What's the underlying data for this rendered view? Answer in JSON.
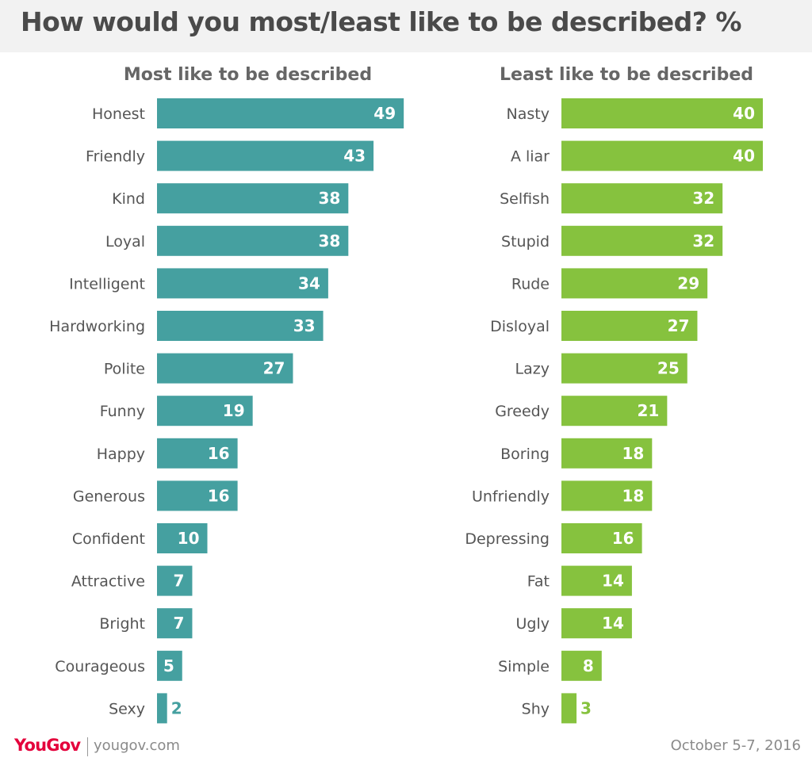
{
  "title": "How would you most/least like to be described? %",
  "colors": {
    "most": "#45a0a0",
    "least": "#86c23e",
    "label": "#555555",
    "header_bg": "#f2f2f2",
    "brand": "#e4003b"
  },
  "chart_data": [
    {
      "type": "bar",
      "orientation": "horizontal",
      "title": "Most like to be described",
      "categories": [
        "Honest",
        "Friendly",
        "Kind",
        "Loyal",
        "Intelligent",
        "Hardworking",
        "Polite",
        "Funny",
        "Happy",
        "Generous",
        "Confident",
        "Attractive",
        "Bright",
        "Courageous",
        "Sexy"
      ],
      "values": [
        49,
        43,
        38,
        38,
        34,
        33,
        27,
        19,
        16,
        16,
        10,
        7,
        7,
        5,
        2
      ],
      "xlim": [
        0,
        50
      ],
      "grid": false
    },
    {
      "type": "bar",
      "orientation": "horizontal",
      "title": "Least like to be described",
      "categories": [
        "Nasty",
        "A liar",
        "Selfish",
        "Stupid",
        "Rude",
        "Disloyal",
        "Lazy",
        "Greedy",
        "Boring",
        "Unfriendly",
        "Depressing",
        "Fat",
        "Ugly",
        "Simple",
        "Shy"
      ],
      "values": [
        40,
        40,
        32,
        32,
        29,
        27,
        25,
        21,
        18,
        18,
        16,
        14,
        14,
        8,
        3
      ],
      "xlim": [
        0,
        50
      ],
      "grid": false
    }
  ],
  "footer": {
    "logo": "YouGov",
    "url": "yougov.com",
    "date": "October 5-7, 2016"
  }
}
